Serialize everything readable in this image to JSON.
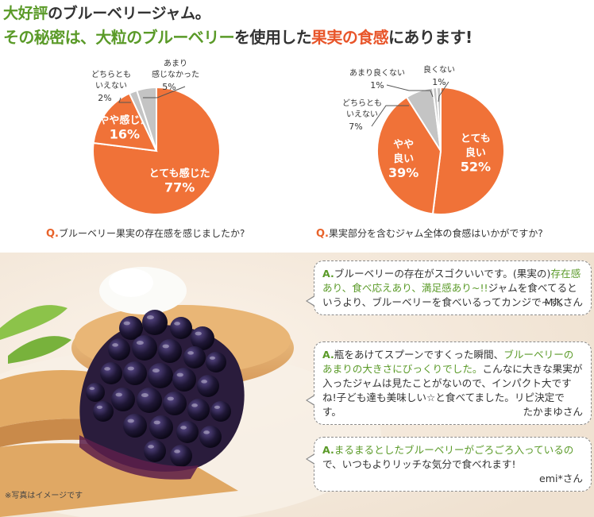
{
  "headline": {
    "line1_prefix": "大好評",
    "line1_rest": "のブルーベリージャム。",
    "line2_a": "その秘密は、",
    "line2_b": "大粒のブルーベリー",
    "line2_c": "を使用した",
    "line2_d": "果実の食感",
    "line2_e": "にあります!"
  },
  "colors": {
    "orange": "#f07238",
    "gray": "#c4c4c4",
    "green": "#5a9a28"
  },
  "chart_data": [
    {
      "type": "pie",
      "question_prefix": "Q.",
      "question": "ブルーベリー果実の存在感を感じましたか?",
      "slices": [
        {
          "label": "とても感じた",
          "value": 77,
          "value_label": "77%",
          "color": "#f07238"
        },
        {
          "label": "やや感じた",
          "value": 16,
          "value_label": "16%",
          "color": "#f07238"
        },
        {
          "label": "どちらとも いえない",
          "value": 2,
          "value_label": "2%",
          "color": "#c4c4c4"
        },
        {
          "label": "あまり 感じなかった",
          "value": 5,
          "value_label": "5%",
          "color": "#c4c4c4"
        }
      ]
    },
    {
      "type": "pie",
      "question_prefix": "Q.",
      "question": "果実部分を含むジャム全体の食感はいかがですか?",
      "slices": [
        {
          "label": "とても 良い",
          "value": 52,
          "value_label": "52%",
          "color": "#f07238"
        },
        {
          "label": "やや 良い",
          "value": 39,
          "value_label": "39%",
          "color": "#f07238"
        },
        {
          "label": "どちらとも いえない",
          "value": 7,
          "value_label": "7%",
          "color": "#c4c4c4"
        },
        {
          "label": "あまり良くない",
          "value": 1,
          "value_label": "1%",
          "color": "#c4c4c4"
        },
        {
          "label": "良くない",
          "value": 1,
          "value_label": "1%",
          "color": "#c4c4c4"
        }
      ]
    }
  ],
  "testimonials": [
    {
      "prefix": "A.",
      "lead": "ブルーベリーの存在がスゴクいいです。(果実の)",
      "green": "存在感あり、食べ応えあり、満足感あり~!!",
      "rest": "ジャムを食べてるというより、ブルーベリーを食べいるってカンジで~す。",
      "name": "M.Kさん"
    },
    {
      "prefix": "A.",
      "lead": "瓶をあけてスプーンですくった瞬間、",
      "green": "ブルーベリーのあまりの大きさにびっくりでした。",
      "rest": "こんなに大きな果実が入ったジャムは見たことがないので、インパクト大ですね!子ども達も美味しい☆と食べてました。リピ決定です。",
      "name": "たかまゆさん"
    },
    {
      "prefix": "A.",
      "lead": "",
      "green": "まるまるとしたブルーベリーがごろごろ入っているの",
      "rest": "で、いつもよりリッチな気分で食べれます!",
      "name": "emi*さん"
    }
  ],
  "photo_note": "※写真はイメージです"
}
